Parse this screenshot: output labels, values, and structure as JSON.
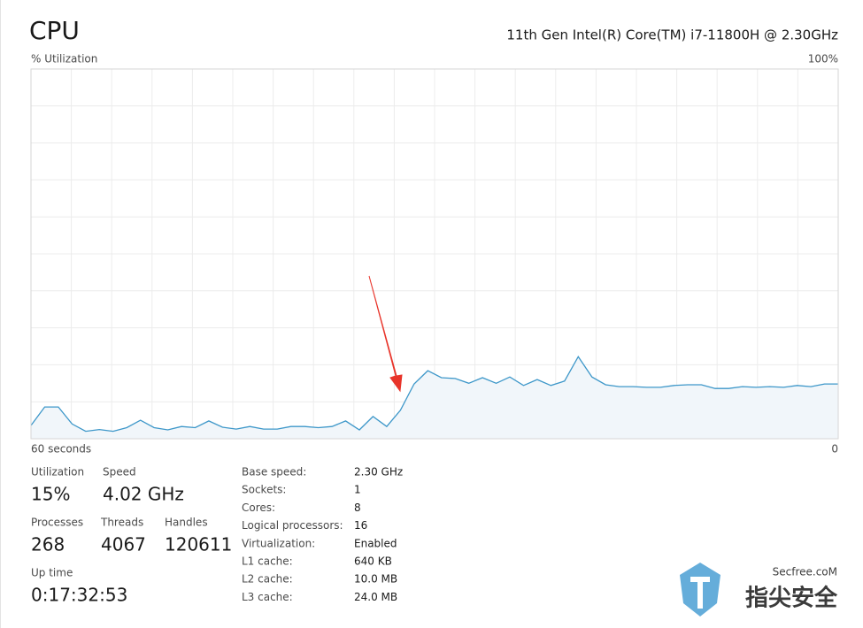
{
  "header": {
    "title": "CPU",
    "processor": "11th Gen Intel(R) Core(TM) i7-11800H @ 2.30GHz"
  },
  "chart_data": {
    "type": "line",
    "y_label": "% Utilization",
    "ylim": [
      0,
      100
    ],
    "yticks": [
      {
        "value": 100,
        "label": "100%"
      }
    ],
    "xlim": [
      60,
      0
    ],
    "xticks": [
      {
        "value": 60,
        "label": "60 seconds"
      },
      {
        "value": 0,
        "label": "0"
      }
    ],
    "grid": true,
    "color": "#3d97c9",
    "fill_color": "#f1f6fa",
    "values": [
      3.6,
      8.6,
      8.6,
      4,
      2,
      2.5,
      2,
      3,
      5,
      3,
      2.4,
      3.3,
      3,
      4.8,
      3.1,
      2.6,
      3.3,
      2.6,
      2.6,
      3.3,
      3.3,
      3,
      3.3,
      4.8,
      2.4,
      6,
      3.3,
      7.7,
      14.8,
      18.4,
      16.5,
      16.3,
      15,
      16.5,
      15,
      16.7,
      14.4,
      16,
      14.4,
      15.6,
      22.2,
      16.7,
      14.6,
      14.1,
      14.1,
      13.9,
      13.9,
      14.4,
      14.6,
      14.6,
      13.6,
      13.6,
      14.1,
      13.9,
      14.1,
      13.9,
      14.4,
      14.1,
      14.8,
      14.8
    ]
  },
  "stats": [
    {
      "label": "Utilization",
      "value": "15%"
    },
    {
      "label": "Speed",
      "value": "4.02 GHz"
    },
    {
      "label": "Processes",
      "value": "268"
    },
    {
      "label": "Threads",
      "value": "4067"
    },
    {
      "label": "Handles",
      "value": "120611"
    },
    {
      "label": "Up time",
      "value": "0:17:32:53"
    }
  ],
  "details": [
    {
      "label": "Base speed:",
      "value": "2.30 GHz"
    },
    {
      "label": "Sockets:",
      "value": "1"
    },
    {
      "label": "Cores:",
      "value": "8"
    },
    {
      "label": "Logical processors:",
      "value": "16"
    },
    {
      "label": "Virtualization:",
      "value": "Enabled"
    },
    {
      "label": "L1 cache:",
      "value": "640 KB"
    },
    {
      "label": "L2 cache:",
      "value": "10.0 MB"
    },
    {
      "label": "L3 cache:",
      "value": "24.0 MB"
    }
  ],
  "watermark": {
    "site": "Secfree.coM",
    "brand": "指尖安全"
  }
}
